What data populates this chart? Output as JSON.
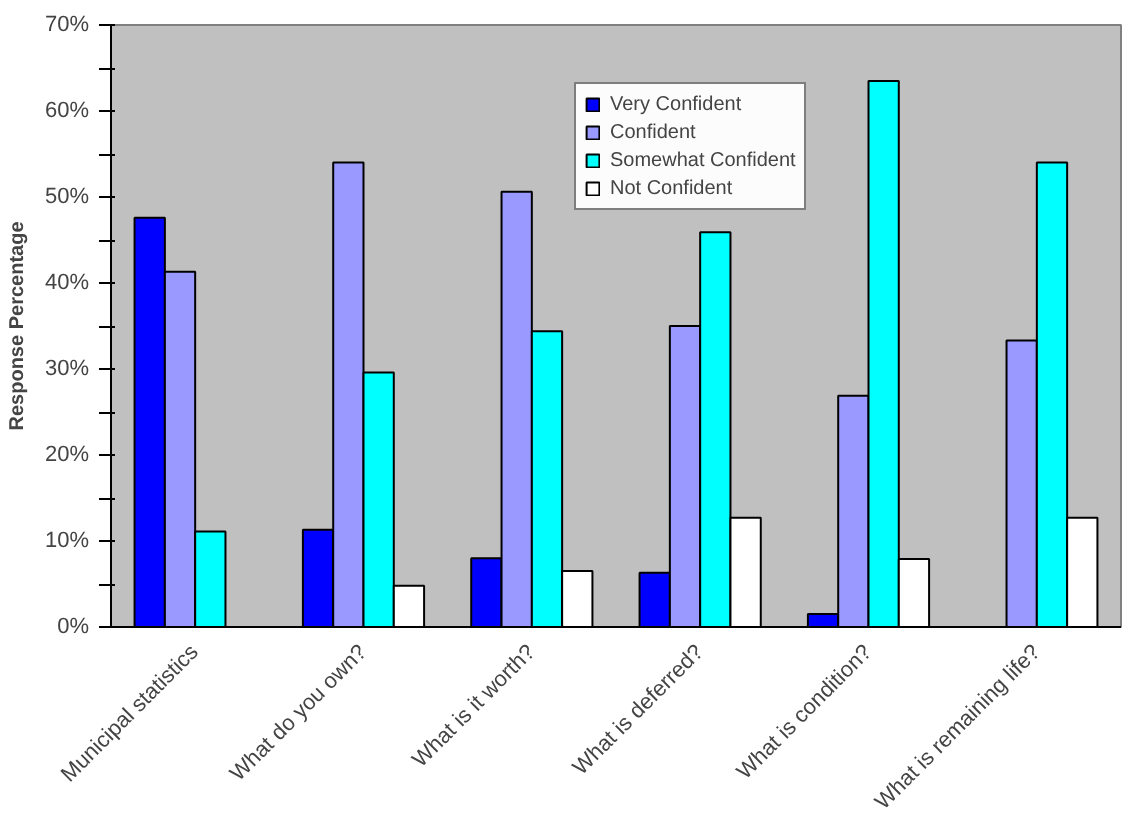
{
  "chart_data": {
    "type": "bar",
    "ylabel": "Response Percentage",
    "categories": [
      "Municipal statistics",
      "What do you own?",
      "What is it worth?",
      "What is deferred?",
      "What is condition?",
      "What is remaining life?"
    ],
    "series": [
      {
        "name": "Very Confident",
        "color": "#0000ff",
        "values": [
          47.6,
          11.3,
          8.0,
          6.3,
          1.5,
          null
        ]
      },
      {
        "name": "Confident",
        "color": "#9999ff",
        "values": [
          41.3,
          54.0,
          50.6,
          35.0,
          26.9,
          33.3
        ]
      },
      {
        "name": "Somewhat Confident",
        "color": "#00ffff",
        "values": [
          11.1,
          29.6,
          34.4,
          45.9,
          63.5,
          54.0
        ]
      },
      {
        "name": "Not Confident",
        "color": "#ffffff",
        "values": [
          null,
          4.8,
          6.5,
          12.7,
          7.9,
          12.7
        ]
      }
    ],
    "ylim": [
      0,
      70
    ],
    "yticks": [
      {
        "value": 0,
        "label": "0%"
      },
      {
        "value": 5,
        "label": null
      },
      {
        "value": 10,
        "label": "10%"
      },
      {
        "value": 15,
        "label": null
      },
      {
        "value": 20,
        "label": "20%"
      },
      {
        "value": 25,
        "label": null
      },
      {
        "value": 30,
        "label": "30%"
      },
      {
        "value": 35,
        "label": null
      },
      {
        "value": 40,
        "label": "40%"
      },
      {
        "value": 45,
        "label": null
      },
      {
        "value": 50,
        "label": "50%"
      },
      {
        "value": 55,
        "label": null
      },
      {
        "value": 60,
        "label": "60%"
      },
      {
        "value": 65,
        "label": null
      },
      {
        "value": 70,
        "label": "70%"
      }
    ],
    "grid": false,
    "legend": "top right"
  }
}
